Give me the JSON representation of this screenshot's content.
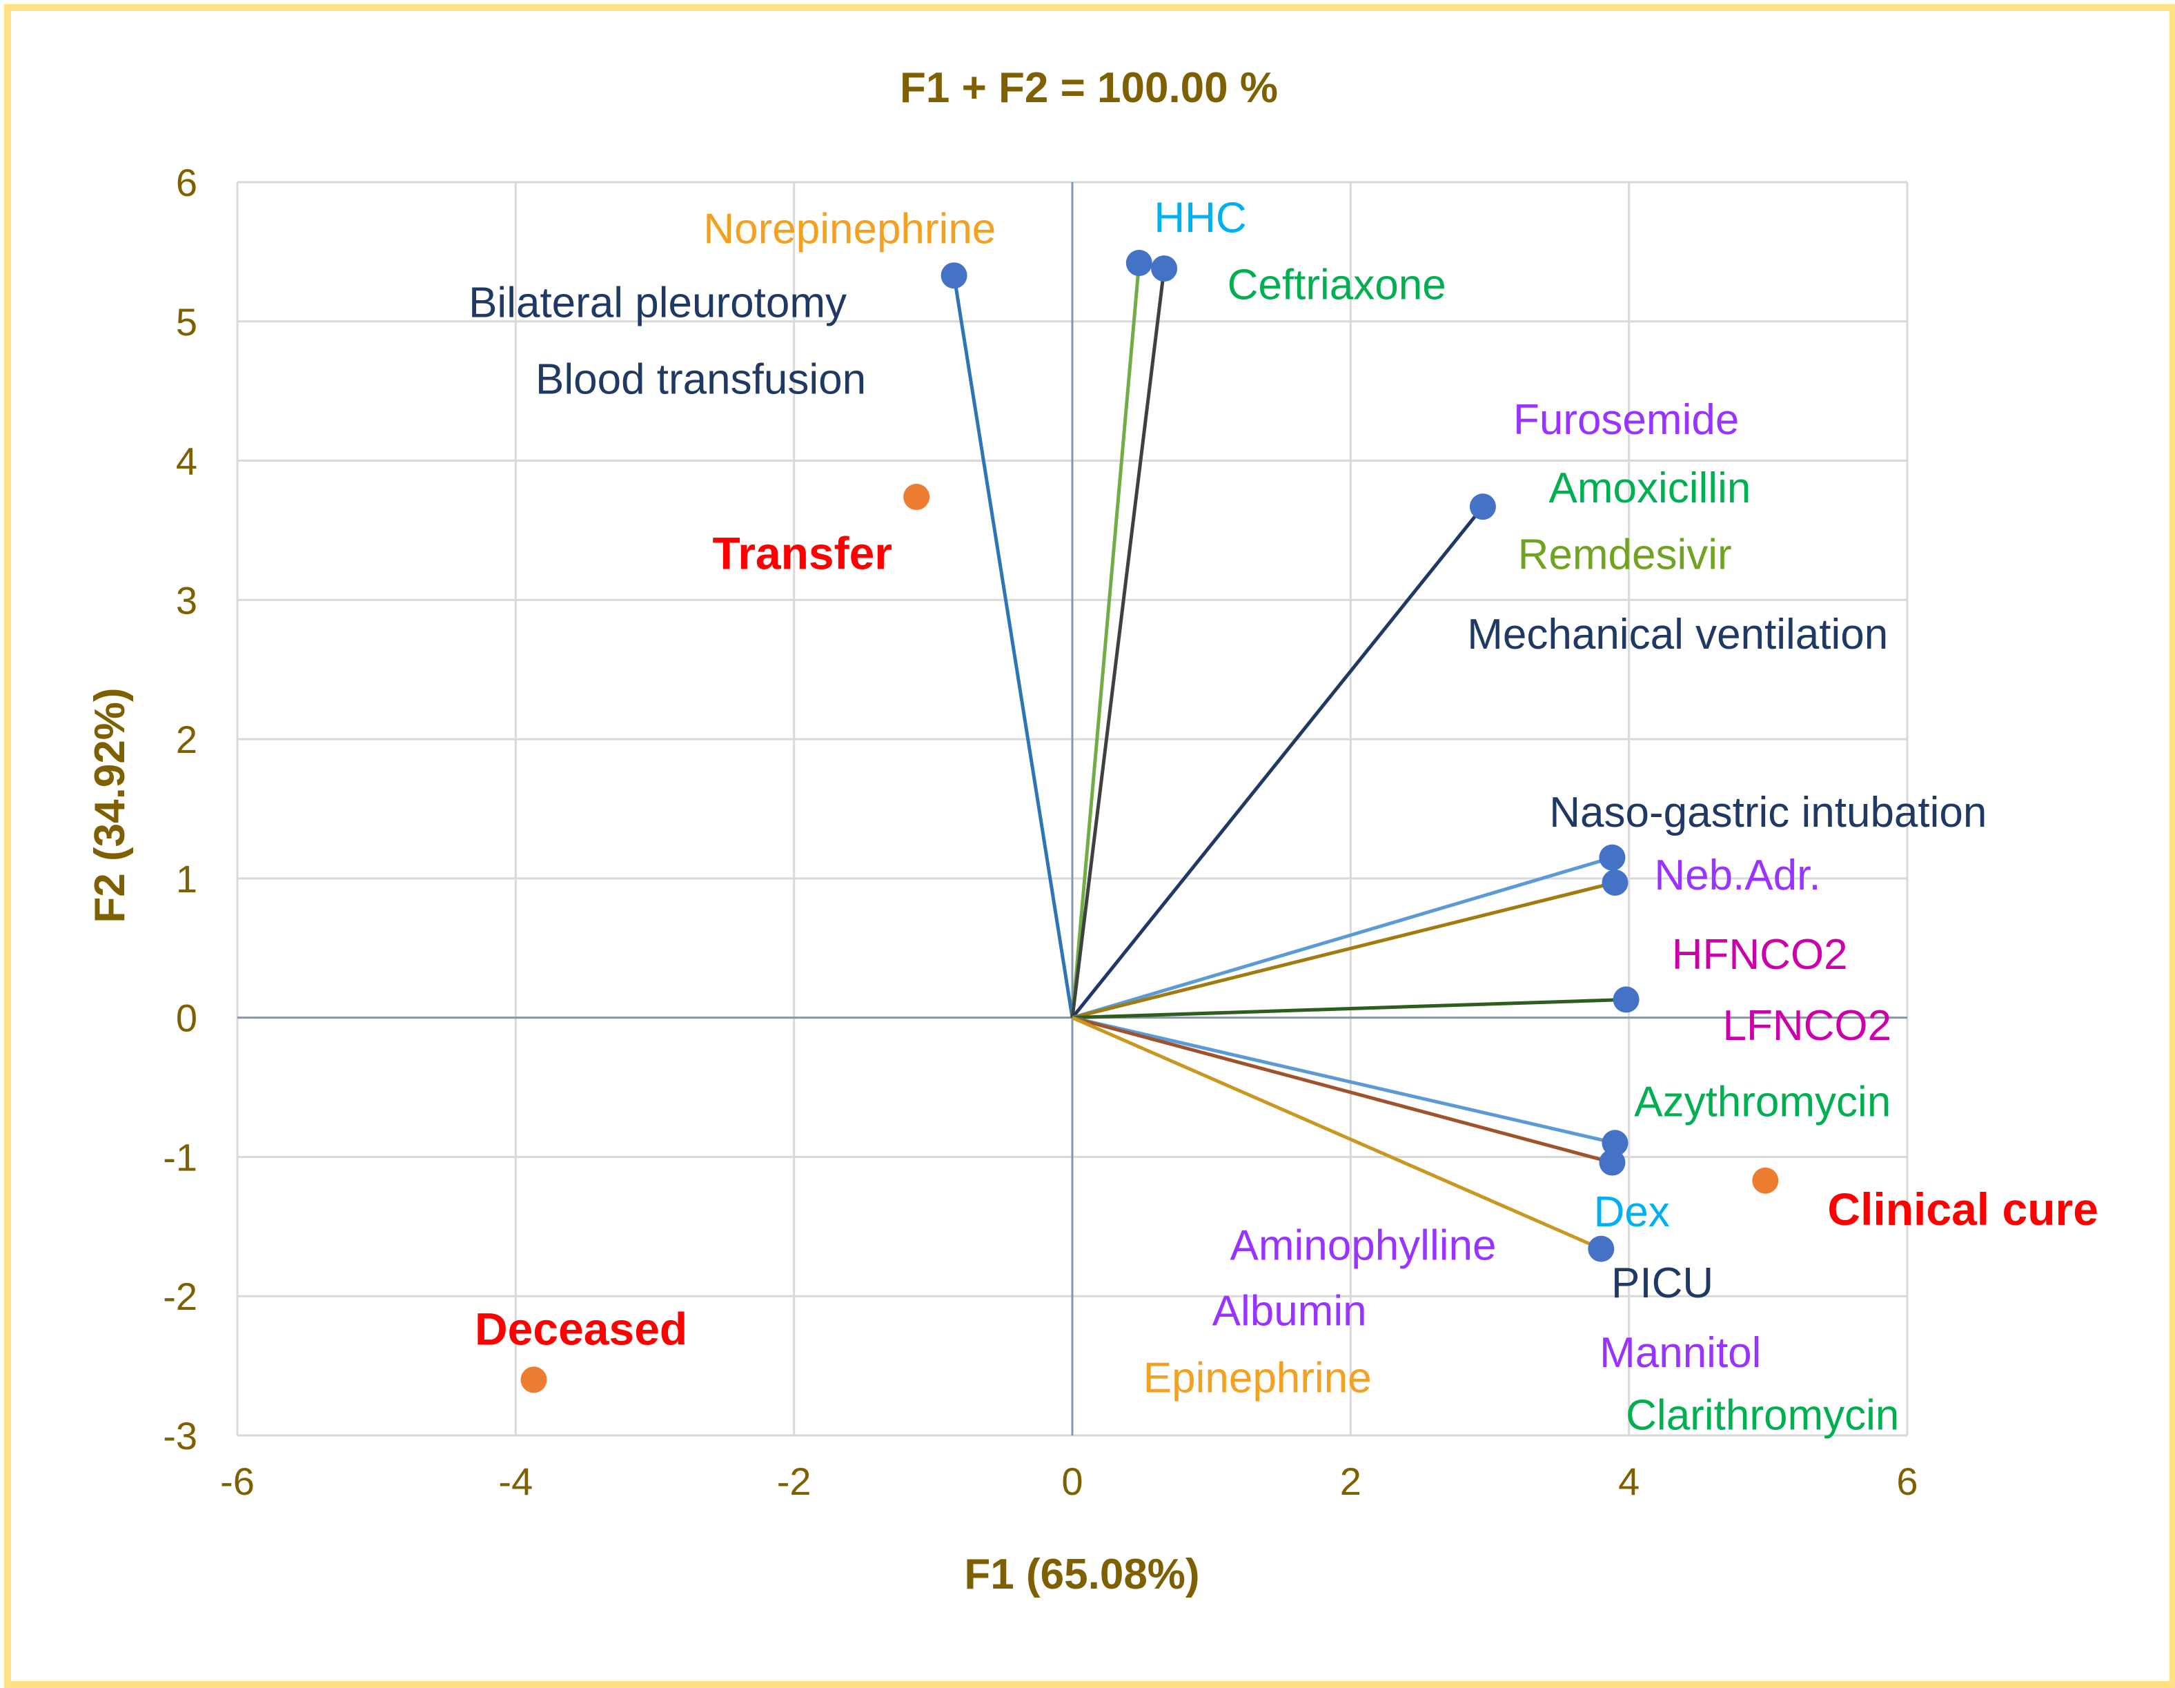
{
  "chart_data": {
    "type": "scatter",
    "subtype": "biplot",
    "title": "F1 + F2 = 100.00 %",
    "xlabel": "F1 (65.08%)",
    "ylabel": "F2 (34.92%)",
    "xlim": [
      -6,
      6
    ],
    "ylim": [
      -3,
      6
    ],
    "xticks": [
      -6,
      -4,
      -2,
      0,
      2,
      4,
      6
    ],
    "yticks": [
      -3,
      -2,
      -1,
      0,
      1,
      2,
      3,
      4,
      5,
      6
    ],
    "grid": true,
    "colors": {
      "axis_text": "#7f6000",
      "grid": "#d9d9d9",
      "axis_line": "#8497b0",
      "variable_point": "#4472c4",
      "observation_point": "#ed7d31",
      "observation_label": "#ff0000",
      "frame": "#ffe082"
    },
    "variables": [
      {
        "x": -0.85,
        "y": 5.33,
        "line_color": "#2e75b6",
        "labels": [
          {
            "text": "Norepinephrine",
            "color": "#f4a020",
            "lx": -1.6,
            "ly": 5.67
          },
          {
            "text": "Bilateral pleurotomy",
            "color": "#1f3864",
            "lx": -2.98,
            "ly": 5.14
          },
          {
            "text": "Blood transfusion",
            "color": "#1f3864",
            "lx": -2.67,
            "ly": 4.59
          }
        ]
      },
      {
        "x": 0.48,
        "y": 5.42,
        "line_color": "#70ad47",
        "labels": [
          {
            "text": "HHC",
            "color": "#00b0f0",
            "lx": 0.92,
            "ly": 5.75
          }
        ]
      },
      {
        "x": 0.66,
        "y": 5.38,
        "line_color": "#404040",
        "labels": [
          {
            "text": "Ceftriaxone",
            "color": "#00b050",
            "lx": 1.9,
            "ly": 5.27
          }
        ]
      },
      {
        "x": 2.95,
        "y": 3.67,
        "line_color": "#203864",
        "labels": [
          {
            "text": "Furosemide",
            "color": "#9933ff",
            "lx": 3.98,
            "ly": 4.3
          },
          {
            "text": "Amoxicillin",
            "color": "#00b050",
            "lx": 4.15,
            "ly": 3.81
          },
          {
            "text": "Remdesivir",
            "color": "#70a320",
            "lx": 3.97,
            "ly": 3.33
          },
          {
            "text": "Mechanical ventilation",
            "color": "#1f3864",
            "lx": 4.35,
            "ly": 2.76
          }
        ]
      },
      {
        "x": 3.88,
        "y": 1.15,
        "line_color": "#5b9bd5",
        "labels": [
          {
            "text": "Naso-gastric intubation",
            "color": "#203864",
            "lx": 5.0,
            "ly": 1.48
          }
        ]
      },
      {
        "x": 3.9,
        "y": 0.97,
        "line_color": "#a07b10",
        "labels": [
          {
            "text": "Neb.Adr.",
            "color": "#9933ff",
            "lx": 4.78,
            "ly": 1.03
          }
        ]
      },
      {
        "x": 3.98,
        "y": 0.13,
        "line_color": "#2e5e1e",
        "labels": [
          {
            "text": "HFNCO2",
            "color": "#cc00aa",
            "lx": 4.94,
            "ly": 0.46
          },
          {
            "text": "LFNCO2",
            "color": "#cc00aa",
            "lx": 5.28,
            "ly": -0.05
          }
        ]
      },
      {
        "x": 3.9,
        "y": -0.9,
        "line_color": "#5b9bd5",
        "labels": [
          {
            "text": "Azythromycin",
            "color": "#00b050",
            "lx": 4.96,
            "ly": -0.6
          }
        ]
      },
      {
        "x": 3.88,
        "y": -1.04,
        "line_color": "#a0522d",
        "labels": [
          {
            "text": "Dex",
            "color": "#00b0f0",
            "lx": 4.02,
            "ly": -1.39
          }
        ]
      },
      {
        "x": 3.8,
        "y": -1.66,
        "line_color": "#c89820",
        "labels": [
          {
            "text": "Aminophylline",
            "color": "#9933ff",
            "lx": 2.09,
            "ly": -1.63
          },
          {
            "text": "PICU",
            "color": "#1f3864",
            "lx": 4.24,
            "ly": -1.9
          },
          {
            "text": "Albumin",
            "color": "#9933ff",
            "lx": 1.56,
            "ly": -2.1
          },
          {
            "text": "Mannitol",
            "color": "#9933ff",
            "lx": 4.37,
            "ly": -2.4
          },
          {
            "text": "Epinephrine",
            "color": "#f4a020",
            "lx": 1.33,
            "ly": -2.58
          },
          {
            "text": "Clarithromycin",
            "color": "#00b050",
            "lx": 4.96,
            "ly": -2.85
          }
        ]
      }
    ],
    "observations": [
      {
        "name": "Transfer",
        "x": -1.12,
        "y": 3.74,
        "lx": -1.94,
        "ly": 3.33
      },
      {
        "name": "Clinical cure",
        "x": 4.98,
        "y": -1.17,
        "lx": 6.4,
        "ly": -1.38
      },
      {
        "name": "Deceased",
        "x": -3.87,
        "y": -2.6,
        "lx": -3.53,
        "ly": -2.24
      }
    ]
  }
}
